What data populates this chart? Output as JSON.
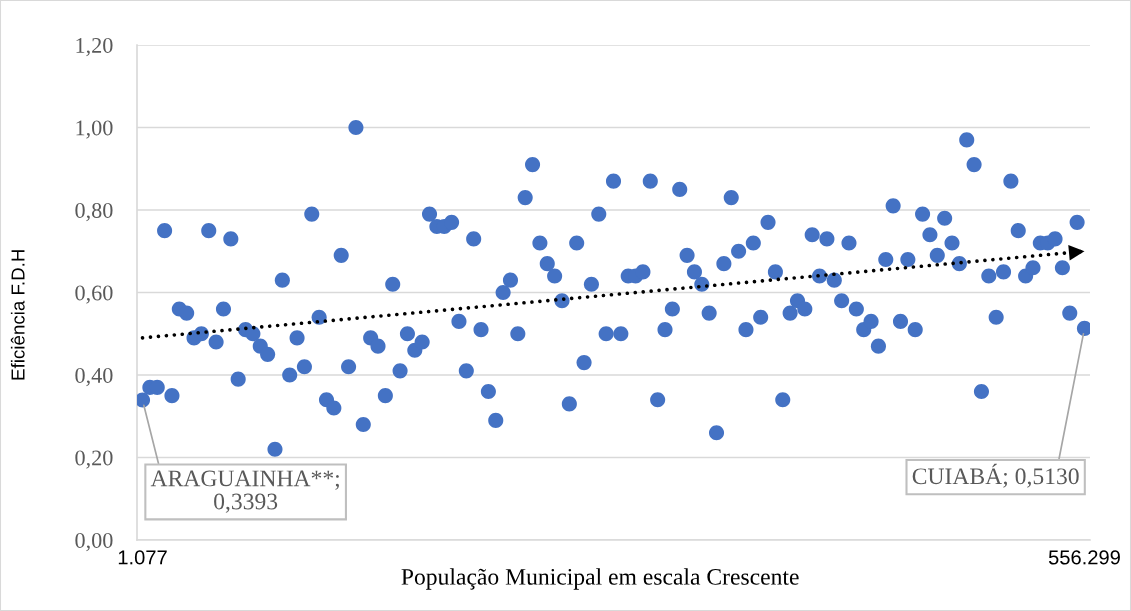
{
  "chart_data": {
    "type": "scatter",
    "xlabel": "População Municipal em escala Crescente",
    "ylabel": "Eficiência F.D.H",
    "categories": [
      "1.077",
      null,
      null,
      null,
      null,
      null,
      null,
      null,
      null,
      null,
      null,
      null,
      null,
      null,
      null,
      null,
      null,
      null,
      null,
      null,
      null,
      null,
      null,
      null,
      null,
      null,
      null,
      null,
      null,
      null,
      null,
      null,
      null,
      null,
      null,
      null,
      null,
      null,
      null,
      null,
      null,
      null,
      null,
      null,
      null,
      null,
      null,
      null,
      null,
      null,
      null,
      null,
      null,
      null,
      null,
      null,
      null,
      null,
      null,
      null,
      null,
      null,
      null,
      null,
      null,
      null,
      null,
      null,
      null,
      null,
      null,
      null,
      null,
      null,
      null,
      null,
      null,
      null,
      null,
      null,
      null,
      null,
      null,
      null,
      null,
      null,
      null,
      null,
      null,
      null,
      null,
      null,
      null,
      null,
      null,
      null,
      null,
      null,
      null,
      null,
      null,
      null,
      null,
      null,
      null,
      null,
      null,
      null,
      null,
      null,
      null,
      null,
      null,
      null,
      null,
      null,
      null,
      null,
      null,
      null,
      null,
      null,
      null,
      null,
      null,
      null,
      null,
      null,
      "556.299"
    ],
    "series": [
      {
        "color": "#4472c4",
        "values": [
          0.3393,
          0.37,
          0.37,
          0.75,
          0.35,
          0.56,
          0.55,
          0.49,
          0.5,
          0.75,
          0.48,
          0.56,
          0.73,
          0.39,
          0.51,
          0.5,
          0.47,
          0.45,
          0.22,
          0.63,
          0.4,
          0.49,
          0.42,
          0.79,
          0.54,
          0.34,
          0.32,
          0.69,
          0.42,
          1.0,
          0.28,
          0.49,
          0.47,
          0.35,
          0.62,
          0.41,
          0.5,
          0.46,
          0.48,
          0.79,
          0.76,
          0.76,
          0.77,
          0.53,
          0.41,
          0.73,
          0.51,
          0.36,
          0.29,
          0.6,
          0.63,
          0.5,
          0.83,
          0.91,
          0.72,
          0.67,
          0.64,
          0.58,
          0.33,
          0.72,
          0.43,
          0.62,
          0.79,
          0.5,
          0.87,
          0.5,
          0.64,
          0.64,
          0.65,
          0.87,
          0.34,
          0.51,
          0.56,
          0.85,
          0.69,
          0.65,
          0.62,
          0.55,
          0.26,
          0.67,
          0.83,
          0.7,
          0.51,
          0.72,
          0.54,
          0.77,
          0.65,
          0.34,
          0.55,
          0.58,
          0.56,
          0.74,
          0.64,
          0.73,
          0.63,
          0.58,
          0.72,
          0.56,
          0.51,
          0.53,
          0.47,
          0.68,
          0.81,
          0.53,
          0.68,
          0.51,
          0.79,
          0.74,
          0.69,
          0.78,
          0.72,
          0.67,
          0.97,
          0.91,
          0.36,
          0.64,
          0.54,
          0.65,
          0.87,
          0.75,
          0.64,
          0.66,
          0.72,
          0.72,
          0.73,
          0.66,
          0.55,
          0.77,
          0.513
        ]
      },
      {
        "type": "line",
        "x": [
          "1.077",
          "556.299"
        ],
        "values": [
          0.49,
          0.7
        ],
        "color": "#000000",
        "line_style": "dotted",
        "marker": "none"
      }
    ],
    "marker": "circle",
    "ylim": [
      0,
      1.2
    ],
    "yticks": [
      {
        "value": 0,
        "label": "0,00"
      },
      {
        "value": 0.2,
        "label": "0,20"
      },
      {
        "value": 0.4,
        "label": "0,40"
      },
      {
        "value": 0.6,
        "label": "0,60"
      },
      {
        "value": 0.8,
        "label": "0,80"
      },
      {
        "value": 1.0,
        "label": "1,00"
      },
      {
        "value": 1.2,
        "label": "1,20"
      }
    ],
    "grid": "y",
    "annotations": [
      {
        "text": "ARAGUAINHA**;\n0,3393",
        "x": "1.077",
        "y": 0.3393
      },
      {
        "text": "CUIABÁ; 0,5130",
        "x": "556.299",
        "y": 0.513
      }
    ]
  }
}
